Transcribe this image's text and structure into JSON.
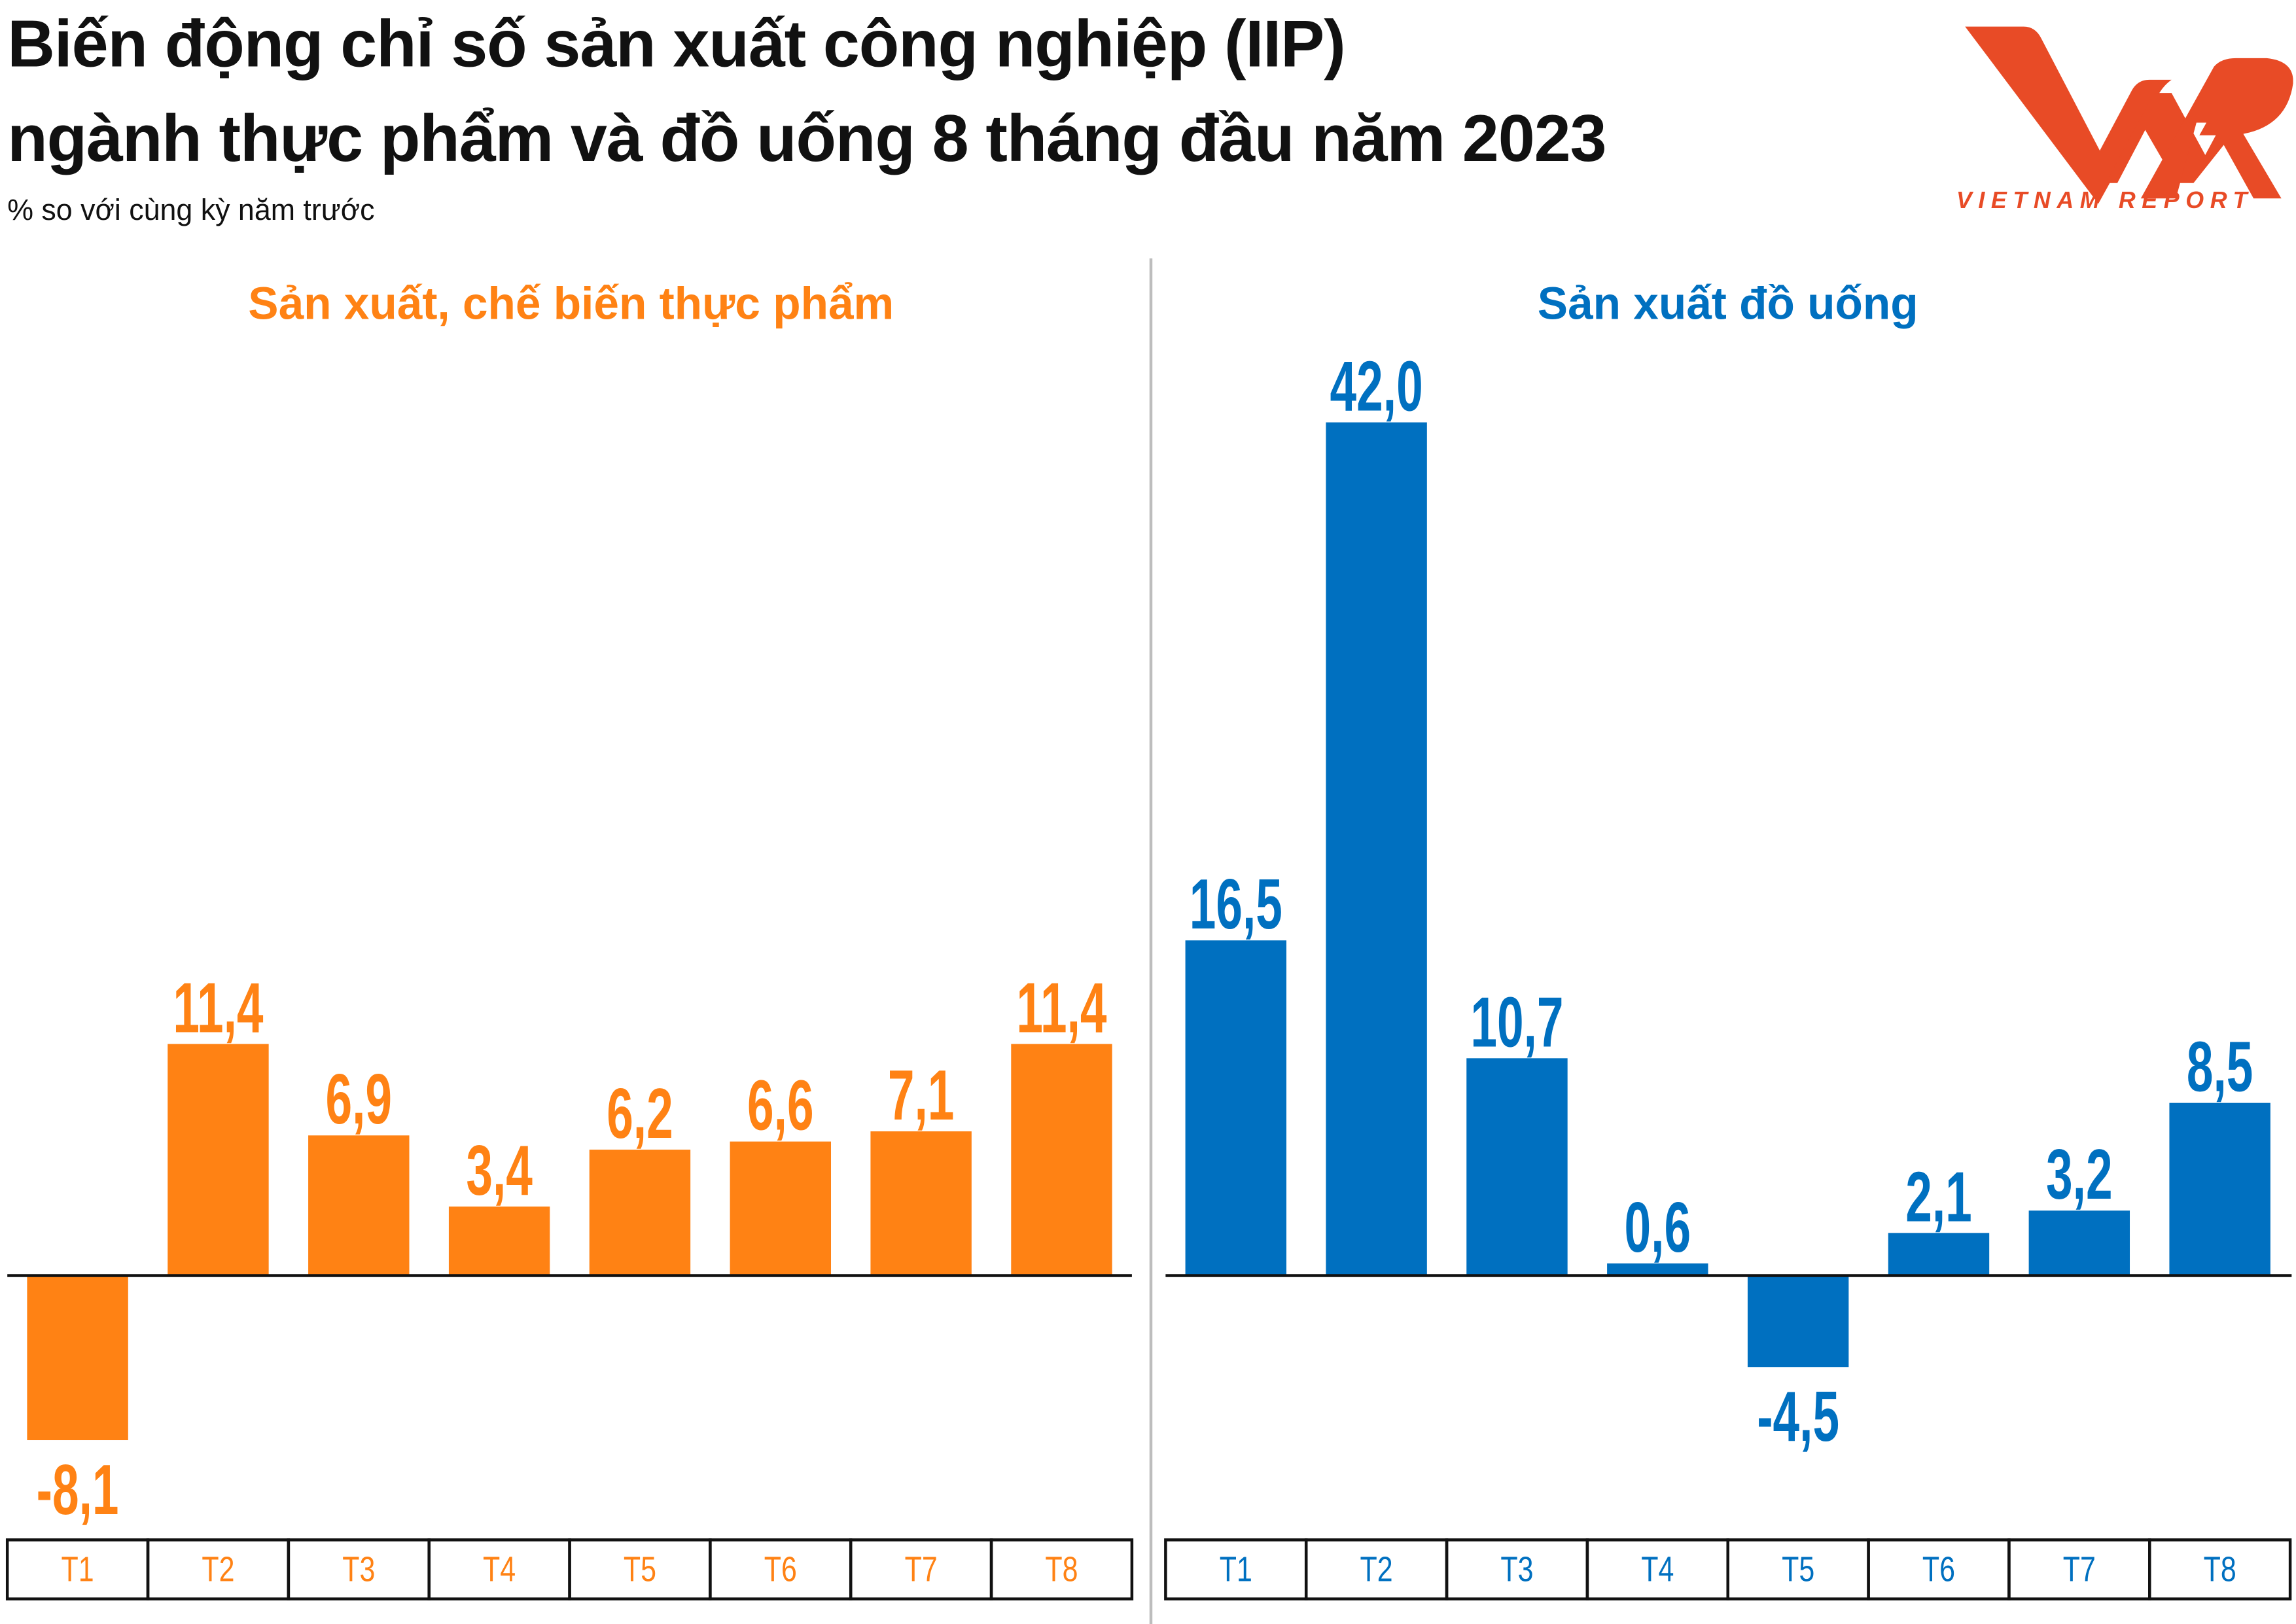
{
  "header": {
    "title_line1": "Biến động chỉ số sản xuất công nghiệp (IIP)",
    "title_line2": "ngành thực phẩm và đồ uống 8 tháng đầu năm 2023",
    "subtitle": "% so với cùng kỳ năm trước",
    "logo_text": "VNR",
    "logo_tagline": "VIETNAM REPORT",
    "logo_color": "#E84B26"
  },
  "chart_data": [
    {
      "type": "bar",
      "title": "Sản xuất, chế biến thực phẩm",
      "color": "#FF8214",
      "categories": [
        "T1",
        "T2",
        "T3",
        "T4",
        "T5",
        "T6",
        "T7",
        "T8"
      ],
      "values": [
        -8.1,
        11.4,
        6.9,
        3.4,
        6.2,
        6.6,
        7.1,
        11.4
      ],
      "labels": [
        "-8,1",
        "11,4",
        "6,9",
        "3,4",
        "6,2",
        "6,6",
        "7,1",
        "11,4"
      ],
      "ylim": [
        -15,
        45
      ],
      "grid": false,
      "legend": "none"
    },
    {
      "type": "bar",
      "title": "Sản xuất đồ uống",
      "color": "#0070C0",
      "categories": [
        "T1",
        "T2",
        "T3",
        "T4",
        "T5",
        "T6",
        "T7",
        "T8"
      ],
      "values": [
        16.5,
        42.0,
        10.7,
        0.6,
        -4.5,
        2.1,
        3.2,
        8.5
      ],
      "labels": [
        "16,5",
        "42,0",
        "10,7",
        "0,6",
        "-4,5",
        "2,1",
        "3,2",
        "8,5"
      ],
      "ylim": [
        -15,
        45
      ],
      "grid": false,
      "legend": "none"
    }
  ]
}
